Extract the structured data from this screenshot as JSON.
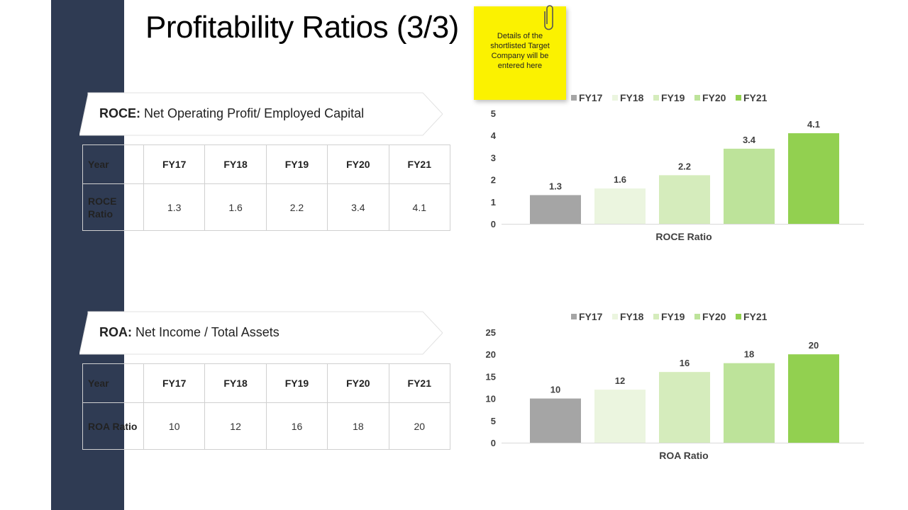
{
  "page": {
    "title": "Profitability Ratios (3/3)",
    "note": "Details of the shortlisted Target Company will be entered here"
  },
  "sections": [
    {
      "banner_abbr": "ROCE:",
      "banner_desc": " Net Operating Profit/ Employed Capital",
      "table": {
        "header_label": "Year",
        "years": [
          "FY17",
          "FY18",
          "FY19",
          "FY20",
          "FY21"
        ],
        "row_label": "ROCE Ratio",
        "values": [
          "1.3",
          "1.6",
          "2.2",
          "3.4",
          "4.1"
        ]
      }
    },
    {
      "banner_abbr": "ROA:",
      "banner_desc": " Net Income / Total Assets",
      "table": {
        "header_label": "Year",
        "years": [
          "FY17",
          "FY18",
          "FY19",
          "FY20",
          "FY21"
        ],
        "row_label": "ROA Ratio",
        "values": [
          "10",
          "12",
          "16",
          "18",
          "20"
        ]
      }
    }
  ],
  "chart_data": [
    {
      "type": "bar",
      "categories": [
        "ROCE Ratio"
      ],
      "series": [
        {
          "name": "FY17",
          "values": [
            1.3
          ],
          "color": "#a5a5a5"
        },
        {
          "name": "FY18",
          "values": [
            1.6
          ],
          "color": "#ebf5df"
        },
        {
          "name": "FY19",
          "values": [
            2.2
          ],
          "color": "#d5ecbc"
        },
        {
          "name": "FY20",
          "values": [
            3.4
          ],
          "color": "#bde39a"
        },
        {
          "name": "FY21",
          "values": [
            4.1
          ],
          "color": "#92d050"
        }
      ],
      "xlabel": "ROCE Ratio",
      "ylim": [
        0,
        5
      ],
      "yticks": [
        0,
        1,
        2,
        3,
        4,
        5
      ],
      "legend": "top",
      "grid": false
    },
    {
      "type": "bar",
      "categories": [
        "ROA Ratio"
      ],
      "series": [
        {
          "name": "FY17",
          "values": [
            10
          ],
          "color": "#a5a5a5"
        },
        {
          "name": "FY18",
          "values": [
            12
          ],
          "color": "#ebf5df"
        },
        {
          "name": "FY19",
          "values": [
            16
          ],
          "color": "#d5ecbc"
        },
        {
          "name": "FY20",
          "values": [
            18
          ],
          "color": "#bde39a"
        },
        {
          "name": "FY21",
          "values": [
            20
          ],
          "color": "#92d050"
        }
      ],
      "xlabel": "ROA Ratio",
      "ylim": [
        0,
        25
      ],
      "yticks": [
        0,
        5,
        10,
        15,
        20,
        25
      ],
      "legend": "top",
      "grid": false
    }
  ]
}
